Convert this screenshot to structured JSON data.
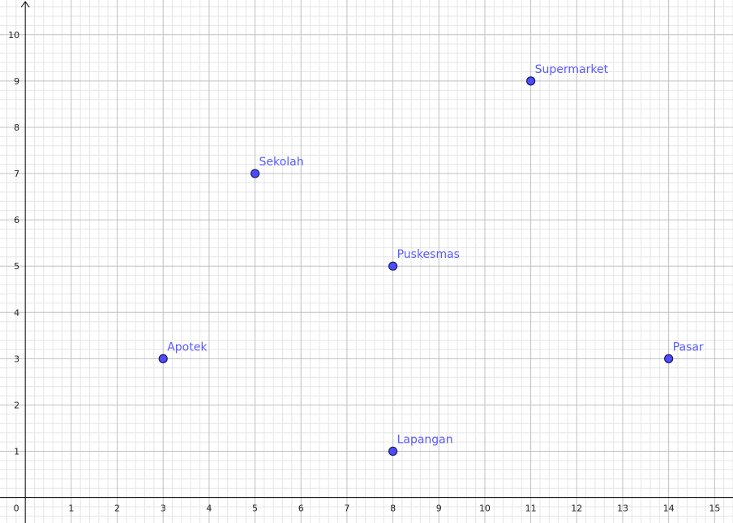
{
  "chart_data": {
    "type": "scatter",
    "title": "",
    "xlabel": "",
    "ylabel": "",
    "xlim": [
      -0.55,
      15.4
    ],
    "ylim": [
      -0.55,
      10.75
    ],
    "grid": true,
    "minor_grid_per_unit": 5,
    "x_ticks": [
      0,
      1,
      2,
      3,
      4,
      5,
      6,
      7,
      8,
      9,
      10,
      11,
      12,
      13,
      14,
      15
    ],
    "y_ticks": [
      1,
      2,
      3,
      4,
      5,
      6,
      7,
      8,
      9,
      10
    ],
    "points": [
      {
        "label": "Sekolah",
        "x": 5,
        "y": 7
      },
      {
        "label": "Supermarket",
        "x": 11,
        "y": 9
      },
      {
        "label": "Puskesmas",
        "x": 8,
        "y": 5
      },
      {
        "label": "Apotek",
        "x": 3,
        "y": 3
      },
      {
        "label": "Pasar",
        "x": 14,
        "y": 3
      },
      {
        "label": "Lapangan",
        "x": 8,
        "y": 1
      }
    ],
    "colors": {
      "point_fill": "#4d4dff",
      "point_stroke": "#1a1a66",
      "label": "#5a5aff",
      "major_grid": "#c0c0c0",
      "minor_grid": "#e6e6e6",
      "axis": "#000000"
    }
  }
}
